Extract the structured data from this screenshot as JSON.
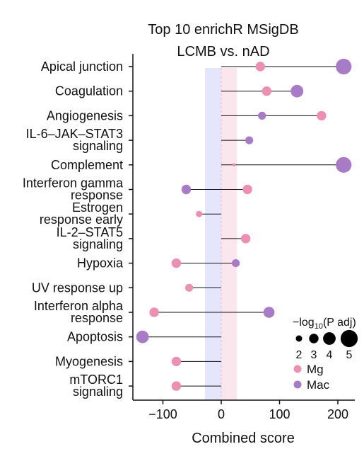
{
  "chart_data": {
    "type": "dot-line",
    "title_lines": [
      "Top 10 enrichR MSigDB",
      "LCMB vs. nAD"
    ],
    "xlabel": "Combined score",
    "xlim": [
      -155,
      225
    ],
    "xticks": [
      -100,
      0,
      100,
      200
    ],
    "xtick_labels": [
      "−100",
      "0",
      "100",
      "200"
    ],
    "bands": [
      {
        "from": -28,
        "to": 0,
        "color": "#e6e6fb"
      },
      {
        "from": 0,
        "to": 27,
        "color": "#fbe6ee"
      }
    ],
    "categories": [
      [
        "Apical junction"
      ],
      [
        "Coagulation"
      ],
      [
        "Angiogenesis"
      ],
      [
        "IL-6–JAK–STAT3",
        "signaling"
      ],
      [
        "Complement"
      ],
      [
        "Interferon gamma",
        "response"
      ],
      [
        "Estrogen",
        "response early"
      ],
      [
        "IL-2–STAT5",
        "signaling"
      ],
      [
        "Hypoxia"
      ],
      [
        "UV response up"
      ],
      [
        "Interferon alpha",
        "response"
      ],
      [
        "Apoptosis"
      ],
      [
        "Myogenesis"
      ],
      [
        "mTORC1",
        "signaling"
      ]
    ],
    "series": [
      {
        "name": "Mg",
        "color": "#ec8fb0",
        "points": [
          {
            "x": 67,
            "padj": 3
          },
          {
            "x": 78,
            "padj": 3
          },
          {
            "x": 172,
            "padj": 3
          },
          null,
          {
            "x": 22,
            "padj": 1
          },
          {
            "x": 45,
            "padj": 3
          },
          {
            "x": -38,
            "padj": 2
          },
          {
            "x": 42,
            "padj": 3
          },
          {
            "x": -77,
            "padj": 3
          },
          {
            "x": -55,
            "padj": 2.5
          },
          {
            "x": -115,
            "padj": 3
          },
          null,
          {
            "x": -77,
            "padj": 3
          },
          {
            "x": -77,
            "padj": 3
          }
        ]
      },
      {
        "name": "Mac",
        "color": "#a87bc6",
        "points": [
          {
            "x": 210,
            "padj": 5
          },
          {
            "x": 130,
            "padj": 4
          },
          {
            "x": 70,
            "padj": 2.5
          },
          {
            "x": 48,
            "padj": 2.5
          },
          {
            "x": 210,
            "padj": 5
          },
          {
            "x": -60,
            "padj": 3
          },
          null,
          null,
          {
            "x": 25,
            "padj": 2.5
          },
          null,
          {
            "x": 82,
            "padj": 3.5
          },
          {
            "x": -135,
            "padj": 4
          },
          null,
          null
        ]
      }
    ],
    "legend": {
      "title": "−log",
      "title_sub": "10",
      "title_rest": "(P adj)",
      "size_values": [
        2,
        3,
        4,
        5
      ],
      "size_labels": [
        "2",
        "3",
        "4",
        "5"
      ],
      "position": "bottom-right"
    }
  }
}
